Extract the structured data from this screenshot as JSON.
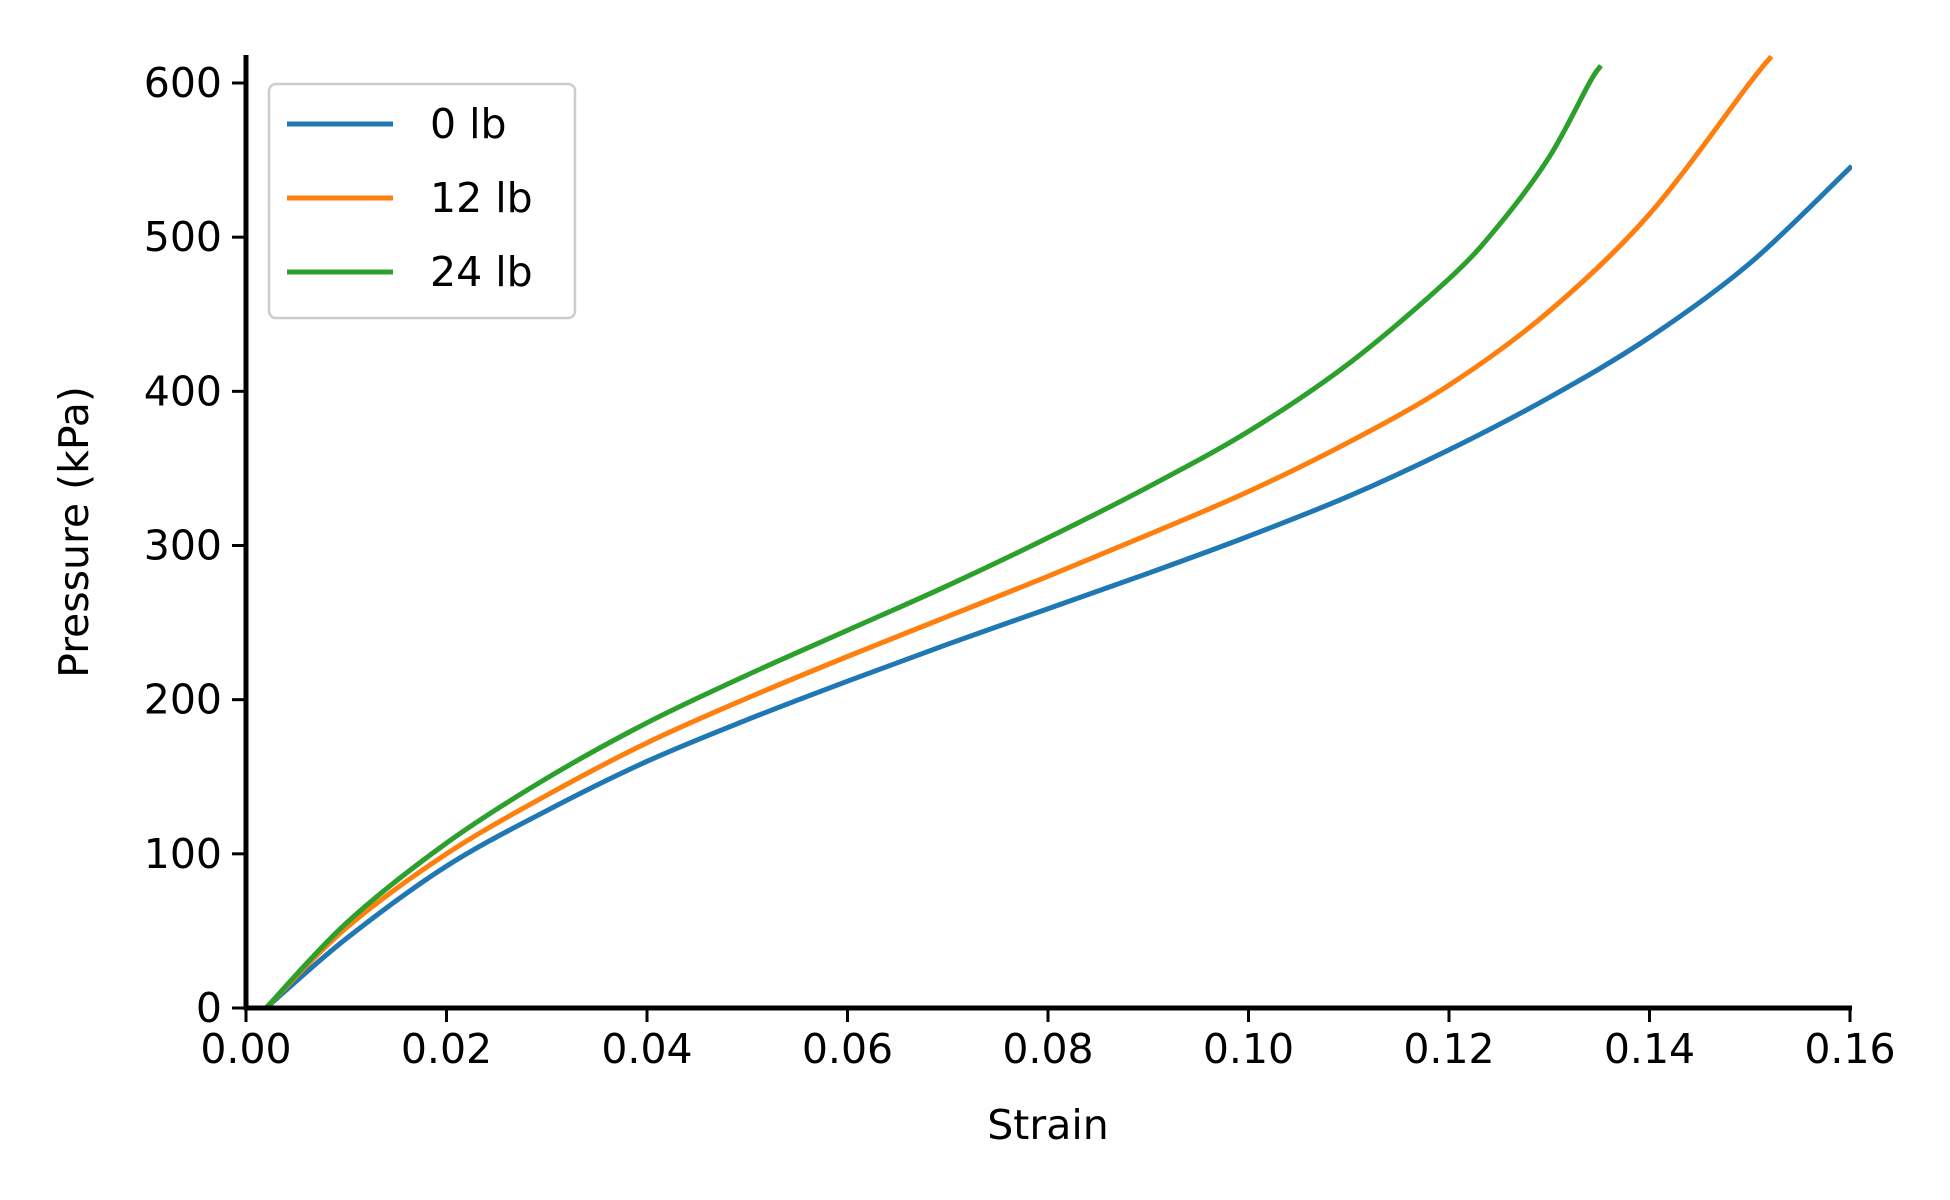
{
  "chart_data": {
    "type": "line",
    "title": "",
    "xlabel": "Strain",
    "ylabel": "Pressure (kPa)",
    "xlim": [
      0.0,
      0.16
    ],
    "ylim": [
      0,
      600
    ],
    "x_ticks": [
      "0.00",
      "0.02",
      "0.04",
      "0.06",
      "0.08",
      "0.10",
      "0.12",
      "0.14",
      "0.16"
    ],
    "y_ticks": [
      "0",
      "100",
      "200",
      "300",
      "400",
      "500",
      "600"
    ],
    "grid": false,
    "legend_position": "top-left",
    "series": [
      {
        "name": "0 lb",
        "color": "#1f77b4",
        "x": [
          0.002,
          0.01,
          0.02,
          0.03,
          0.04,
          0.05,
          0.06,
          0.07,
          0.08,
          0.09,
          0.1,
          0.11,
          0.12,
          0.13,
          0.14,
          0.15,
          0.16
        ],
        "y": [
          0,
          45,
          92,
          128,
          160,
          187,
          212,
          236,
          259,
          282,
          306,
          332,
          362,
          396,
          435,
          483,
          545
        ]
      },
      {
        "name": "12 lb",
        "color": "#ff7f0e",
        "x": [
          0.002,
          0.01,
          0.02,
          0.03,
          0.04,
          0.05,
          0.06,
          0.07,
          0.08,
          0.09,
          0.1,
          0.11,
          0.12,
          0.13,
          0.14,
          0.15,
          0.152
        ],
        "y": [
          0,
          52,
          100,
          138,
          172,
          201,
          228,
          254,
          280,
          307,
          335,
          367,
          404,
          452,
          515,
          600,
          616
        ]
      },
      {
        "name": "24 lb",
        "color": "#2ca02c",
        "x": [
          0.002,
          0.01,
          0.02,
          0.03,
          0.04,
          0.05,
          0.06,
          0.07,
          0.08,
          0.09,
          0.1,
          0.11,
          0.12,
          0.125,
          0.13,
          0.134,
          0.135
        ],
        "y": [
          0,
          55,
          107,
          149,
          185,
          216,
          245,
          274,
          305,
          338,
          374,
          418,
          473,
          508,
          552,
          600,
          610
        ]
      }
    ]
  }
}
